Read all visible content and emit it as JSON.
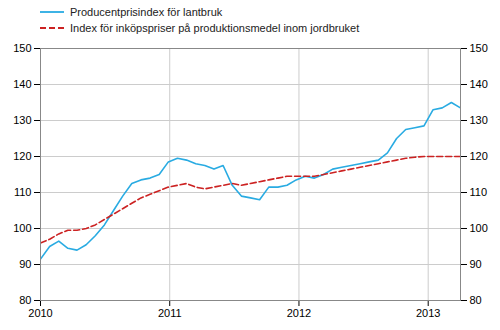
{
  "chart_data": {
    "type": "line",
    "x": [
      2010,
      2010.070652,
      2010.141304,
      2010.211957,
      2010.282609,
      2010.353261,
      2010.423913,
      2010.494565,
      2010.565217,
      2010.63587,
      2010.706522,
      2010.777174,
      2010.847826,
      2010.918478,
      2010.98913,
      2011.059783,
      2011.130435,
      2011.201087,
      2011.271739,
      2011.342391,
      2011.413043,
      2011.483696,
      2011.554348,
      2011.625,
      2011.695652,
      2011.766304,
      2011.836957,
      2011.907609,
      2011.978261,
      2012.048913,
      2012.119565,
      2012.190217,
      2012.26087,
      2012.331522,
      2012.402174,
      2012.472826,
      2012.543478,
      2012.61413,
      2012.684783,
      2012.755435,
      2012.826087,
      2012.896739,
      2012.967391,
      2013.038043,
      2013.108696,
      2013.179348,
      2013.25
    ],
    "series": [
      {
        "name": "Producentprisindex för lantbruk",
        "color": "#29ABE2",
        "line_style": "solid",
        "values": [
          91.5,
          95.0,
          96.5,
          94.5,
          94.0,
          95.5,
          98.0,
          101.0,
          105.0,
          109.0,
          112.5,
          113.5,
          114.0,
          115.0,
          118.5,
          119.5,
          119.0,
          118.0,
          117.5,
          116.5,
          117.5,
          112.0,
          109.0,
          108.5,
          108.0,
          111.5,
          111.5,
          112.0,
          113.5,
          114.5,
          114.0,
          115.0,
          116.5,
          117.0,
          117.5,
          118.0,
          118.5,
          119.0,
          121.0,
          125.0,
          127.5,
          128.0,
          128.5,
          133.0,
          133.5,
          135.0,
          133.5
        ]
      },
      {
        "name": "Index för inköpspriser på produktionsmedel inom jordbruket",
        "color": "#CC2222",
        "line_style": "dashed",
        "axis": "y2",
        "values": [
          96.0,
          97.0,
          98.5,
          99.5,
          99.5,
          100.0,
          101.0,
          102.5,
          104.0,
          105.5,
          107.0,
          108.5,
          109.5,
          110.5,
          111.5,
          112.0,
          112.5,
          111.5,
          111.0,
          111.5,
          112.0,
          112.5,
          112.0,
          112.5,
          113.0,
          113.5,
          114.0,
          114.5,
          114.5,
          114.5,
          114.5,
          115.0,
          115.5,
          116.0,
          116.5,
          117.0,
          117.5,
          118.0,
          118.5,
          119.0,
          119.5,
          119.8,
          120.0,
          120.0,
          120.0,
          120.0,
          120.0
        ]
      }
    ],
    "xlim": [
      2010,
      2013.25
    ],
    "xticks": [
      2010,
      2011,
      2012,
      2013
    ],
    "ylim": [
      80,
      150
    ],
    "yticks": [
      80,
      90,
      100,
      110,
      120,
      130,
      140,
      150
    ],
    "y2lim": [
      80,
      150
    ],
    "y2ticks": [
      80,
      90,
      100,
      110,
      120,
      130,
      140,
      150
    ],
    "grid": true,
    "legend": "upper left"
  }
}
